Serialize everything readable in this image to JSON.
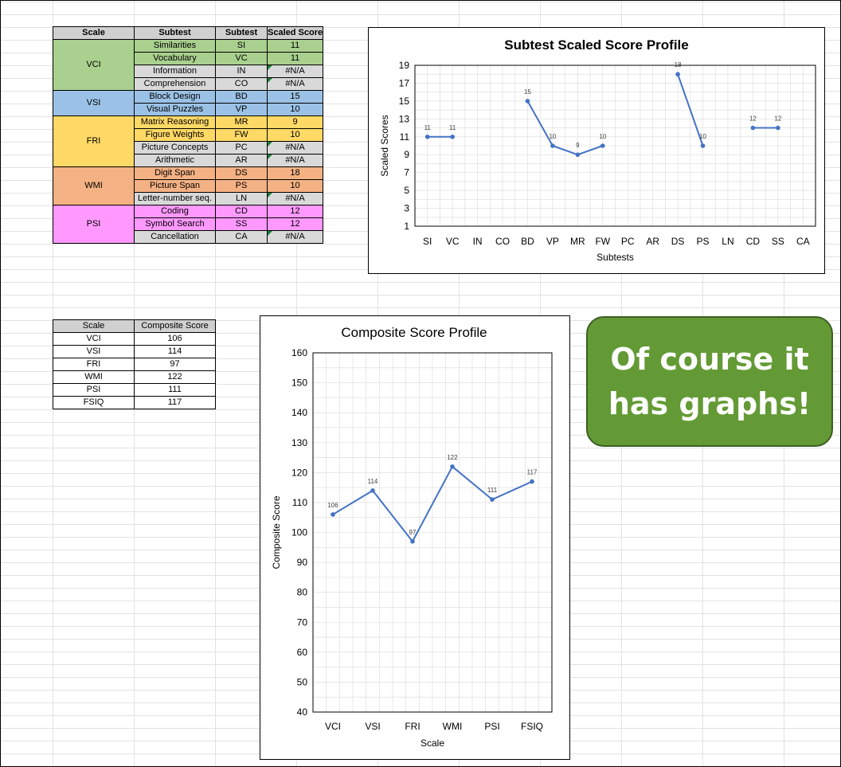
{
  "subtest_table": {
    "headers": [
      "Scale",
      "Subtest",
      "Subtest",
      "Scaled Score"
    ],
    "groups": [
      {
        "scale": "VCI",
        "color": "#a9d08e",
        "rows": [
          {
            "name": "Similarities",
            "abbr": "SI",
            "score": "11",
            "na": false
          },
          {
            "name": "Vocabulary",
            "abbr": "VC",
            "score": "11",
            "na": false
          },
          {
            "name": "Information",
            "abbr": "IN",
            "score": "#N/A",
            "na": true
          },
          {
            "name": "Comprehension",
            "abbr": "CO",
            "score": "#N/A",
            "na": true
          }
        ]
      },
      {
        "scale": "VSI",
        "color": "#9bc2e6",
        "rows": [
          {
            "name": "Block Design",
            "abbr": "BD",
            "score": "15",
            "na": false
          },
          {
            "name": "Visual Puzzles",
            "abbr": "VP",
            "score": "10",
            "na": false
          }
        ]
      },
      {
        "scale": "FRI",
        "color": "#ffd966",
        "rows": [
          {
            "name": "Matrix Reasoning",
            "abbr": "MR",
            "score": "9",
            "na": false
          },
          {
            "name": "Figure Weights",
            "abbr": "FW",
            "score": "10",
            "na": false
          },
          {
            "name": "Picture Concepts",
            "abbr": "PC",
            "score": "#N/A",
            "na": true
          },
          {
            "name": "Arithmetic",
            "abbr": "AR",
            "score": "#N/A",
            "na": true
          }
        ]
      },
      {
        "scale": "WMI",
        "color": "#f4b183",
        "rows": [
          {
            "name": "Digit Span",
            "abbr": "DS",
            "score": "18",
            "na": false
          },
          {
            "name": "Picture Span",
            "abbr": "PS",
            "score": "10",
            "na": false
          },
          {
            "name": "Letter-number seq.",
            "abbr": "LN",
            "score": "#N/A",
            "na": true
          }
        ]
      },
      {
        "scale": "PSI",
        "color": "#ff99ff",
        "rows": [
          {
            "name": "Coding",
            "abbr": "CD",
            "score": "12",
            "na": false
          },
          {
            "name": "Symbol Search",
            "abbr": "SS",
            "score": "12",
            "na": false
          },
          {
            "name": "Cancellation",
            "abbr": "CA",
            "score": "#N/A",
            "na": true
          }
        ]
      }
    ]
  },
  "composite_table": {
    "headers": [
      "Scale",
      "Composite Score"
    ],
    "rows": [
      {
        "scale": "VCI",
        "score": "106"
      },
      {
        "scale": "VSI",
        "score": "114"
      },
      {
        "scale": "FRI",
        "score": "97"
      },
      {
        "scale": "WMI",
        "score": "122"
      },
      {
        "scale": "PSI",
        "score": "111"
      },
      {
        "scale": "FSIQ",
        "score": "117"
      }
    ]
  },
  "callout": {
    "line1": "Of course it",
    "line2": "has graphs!",
    "color": "#639a35"
  },
  "chart_data": [
    {
      "type": "line",
      "title": "Subtest Scaled Score Profile",
      "xlabel": "Subtests",
      "ylabel": "Scaled Scores",
      "categories": [
        "SI",
        "VC",
        "IN",
        "CO",
        "BD",
        "VP",
        "MR",
        "FW",
        "PC",
        "AR",
        "DS",
        "PS",
        "LN",
        "CD",
        "SS",
        "CA"
      ],
      "values": [
        11,
        11,
        null,
        null,
        15,
        10,
        9,
        10,
        null,
        null,
        18,
        10,
        null,
        12,
        12,
        null
      ],
      "ylim": [
        1,
        19
      ],
      "yticks": [
        1,
        3,
        5,
        7,
        9,
        11,
        13,
        15,
        17,
        19
      ],
      "grid": true,
      "data_labels": true,
      "line_color": "#4472c4"
    },
    {
      "type": "line",
      "title": "Composite Score Profile",
      "xlabel": "Scale",
      "ylabel": "Composite Score",
      "categories": [
        "VCI",
        "VSI",
        "FRI",
        "WMI",
        "PSI",
        "FSIQ"
      ],
      "values": [
        106,
        114,
        97,
        122,
        111,
        117
      ],
      "ylim": [
        40,
        160
      ],
      "yticks": [
        40,
        50,
        60,
        70,
        80,
        90,
        100,
        110,
        120,
        130,
        140,
        150,
        160
      ],
      "grid": true,
      "data_labels": true,
      "line_color": "#4472c4"
    }
  ]
}
